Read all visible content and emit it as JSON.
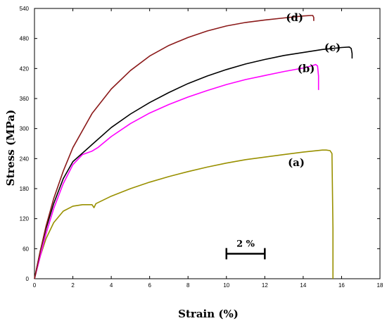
{
  "chart_data": {
    "type": "line",
    "xlabel": "Strain (%)",
    "ylabel": "Stress (MPa)",
    "xlim": [
      0,
      18
    ],
    "ylim": [
      0,
      540
    ],
    "xticks": [
      "0",
      "2",
      "4",
      "6",
      "8",
      "10",
      "12",
      "14",
      "16",
      "18"
    ],
    "yticks": [
      "0",
      "60",
      "120",
      "180",
      "240",
      "300",
      "360",
      "420",
      "480",
      "540"
    ],
    "grid": false,
    "series": [
      {
        "name": "(a)",
        "color": "#999000",
        "x": [
          0,
          0.3,
          0.6,
          1.0,
          1.5,
          2.0,
          2.5,
          3.0,
          3.1,
          3.2,
          4.0,
          5.0,
          6.0,
          7.0,
          8.0,
          9.0,
          10.0,
          11.0,
          12.0,
          13.0,
          14.0,
          15.0,
          15.2,
          15.4,
          15.5,
          15.55,
          15.55
        ],
        "y": [
          0,
          45,
          80,
          112,
          135,
          145,
          148,
          148,
          142,
          150,
          165,
          180,
          193,
          204,
          214,
          223,
          231,
          238,
          243,
          248,
          253,
          257,
          257,
          256,
          250,
          100,
          0
        ]
      },
      {
        "name": "(b)",
        "color": "#ff00ff",
        "x": [
          0,
          0.3,
          0.6,
          1.0,
          1.5,
          2.0,
          2.5,
          3.0,
          3.3,
          4.0,
          5.0,
          6.0,
          7.0,
          8.0,
          9.0,
          10.0,
          11.0,
          12.0,
          13.0,
          14.0,
          14.5,
          14.65,
          14.75,
          14.8,
          14.8
        ],
        "y": [
          0,
          45,
          90,
          140,
          190,
          228,
          248,
          255,
          262,
          284,
          310,
          331,
          348,
          363,
          376,
          388,
          398,
          406,
          414,
          421,
          426,
          428,
          425,
          405,
          377
        ]
      },
      {
        "name": "(c)",
        "color": "#000000",
        "x": [
          0,
          0.3,
          0.6,
          1.0,
          1.5,
          2.0,
          3.0,
          4.0,
          5.0,
          6.0,
          7.0,
          8.0,
          9.0,
          10.0,
          11.0,
          12.0,
          13.0,
          14.0,
          15.0,
          16.0,
          16.4,
          16.5,
          16.55,
          16.55
        ],
        "y": [
          0,
          55,
          100,
          150,
          200,
          234,
          268,
          302,
          329,
          352,
          372,
          390,
          405,
          418,
          429,
          438,
          446,
          452,
          458,
          462,
          463,
          460,
          450,
          440
        ]
      },
      {
        "name": "(d)",
        "color": "#8b1a1a",
        "x": [
          0,
          0.3,
          0.6,
          1.0,
          1.5,
          2.0,
          3.0,
          4.0,
          5.0,
          6.0,
          7.0,
          8.0,
          9.0,
          10.0,
          11.0,
          12.0,
          13.0,
          14.0,
          14.4,
          14.5,
          14.55,
          14.55
        ],
        "y": [
          0,
          55,
          105,
          160,
          215,
          262,
          330,
          379,
          416,
          445,
          466,
          482,
          495,
          505,
          512,
          517,
          521,
          525,
          526,
          526,
          522,
          515
        ]
      }
    ],
    "annotations": [
      {
        "text": "(a)",
        "x": 13.2,
        "y": 232
      },
      {
        "text": "(b)",
        "x": 13.7,
        "y": 420
      },
      {
        "text": "(c)",
        "x": 15.1,
        "y": 462
      },
      {
        "text": "(d)",
        "x": 13.1,
        "y": 522
      }
    ],
    "scale_bar": {
      "label": "2 %",
      "x_start": 10,
      "x_end": 12,
      "y": 50
    }
  }
}
